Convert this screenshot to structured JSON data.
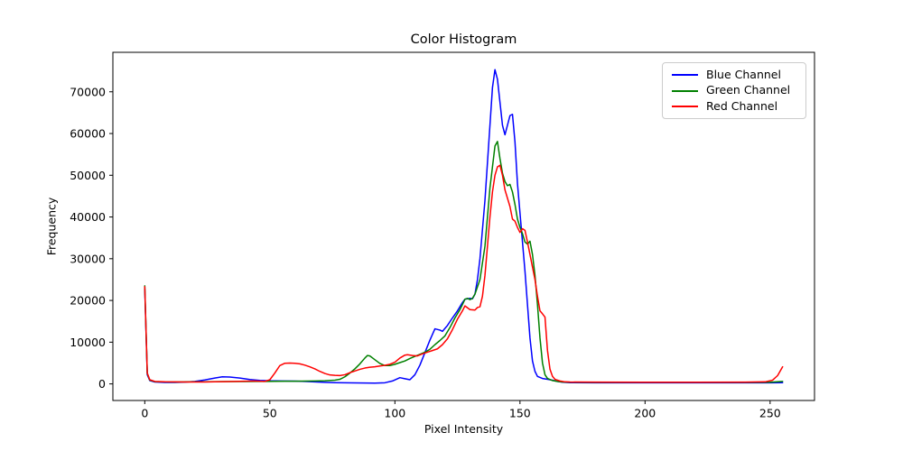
{
  "chart_data": {
    "type": "line",
    "title": "Color Histogram",
    "xlabel": "Pixel Intensity",
    "ylabel": "Frequency",
    "xlim": [
      -12.75,
      267.75
    ],
    "ylim": [
      -3973,
      79460
    ],
    "x_ticks": [
      0,
      50,
      100,
      150,
      200,
      250
    ],
    "y_ticks": [
      0,
      10000,
      20000,
      30000,
      40000,
      50000,
      60000,
      70000
    ],
    "grid": false,
    "legend": {
      "position": "upper right",
      "entries": [
        "Blue Channel",
        "Green Channel",
        "Red Channel"
      ]
    },
    "series": [
      {
        "name": "Blue Channel",
        "color": "#0000ff",
        "points": [
          [
            0,
            22800
          ],
          [
            1,
            2200
          ],
          [
            2,
            800
          ],
          [
            4,
            450
          ],
          [
            8,
            350
          ],
          [
            12,
            350
          ],
          [
            16,
            420
          ],
          [
            20,
            600
          ],
          [
            24,
            950
          ],
          [
            28,
            1400
          ],
          [
            31,
            1700
          ],
          [
            34,
            1650
          ],
          [
            38,
            1400
          ],
          [
            42,
            1050
          ],
          [
            46,
            850
          ],
          [
            50,
            750
          ],
          [
            55,
            700
          ],
          [
            60,
            680
          ],
          [
            64,
            600
          ],
          [
            68,
            480
          ],
          [
            72,
            380
          ],
          [
            76,
            300
          ],
          [
            80,
            260
          ],
          [
            84,
            230
          ],
          [
            88,
            210
          ],
          [
            92,
            200
          ],
          [
            96,
            280
          ],
          [
            99,
            700
          ],
          [
            102,
            1500
          ],
          [
            104,
            1250
          ],
          [
            106,
            1000
          ],
          [
            108,
            2200
          ],
          [
            110,
            4500
          ],
          [
            112,
            7500
          ],
          [
            114,
            10500
          ],
          [
            116,
            13200
          ],
          [
            118,
            12900
          ],
          [
            119,
            12600
          ],
          [
            121,
            14000
          ],
          [
            123,
            15800
          ],
          [
            125,
            17500
          ],
          [
            127,
            19500
          ],
          [
            128,
            20300
          ],
          [
            130,
            20500
          ],
          [
            131,
            20400
          ],
          [
            132,
            21500
          ],
          [
            133,
            25000
          ],
          [
            134,
            30000
          ],
          [
            136,
            44000
          ],
          [
            138,
            62000
          ],
          [
            139,
            71000
          ],
          [
            140,
            75300
          ],
          [
            141,
            73000
          ],
          [
            142,
            67500
          ],
          [
            143,
            62000
          ],
          [
            144,
            59700
          ],
          [
            145,
            62000
          ],
          [
            146,
            64300
          ],
          [
            147,
            64600
          ],
          [
            148,
            58000
          ],
          [
            149,
            48000
          ],
          [
            150,
            41000
          ],
          [
            151,
            34000
          ],
          [
            152,
            27000
          ],
          [
            153,
            19000
          ],
          [
            154,
            11000
          ],
          [
            155,
            5500
          ],
          [
            156,
            3000
          ],
          [
            157,
            1800
          ],
          [
            159,
            1300
          ],
          [
            161,
            1100
          ],
          [
            163,
            900
          ],
          [
            165,
            600
          ],
          [
            167,
            400
          ],
          [
            170,
            300
          ],
          [
            180,
            280
          ],
          [
            200,
            270
          ],
          [
            220,
            270
          ],
          [
            240,
            270
          ],
          [
            250,
            270
          ],
          [
            255,
            300
          ]
        ]
      },
      {
        "name": "Green Channel",
        "color": "#008000",
        "points": [
          [
            0,
            23500
          ],
          [
            1,
            2500
          ],
          [
            2,
            900
          ],
          [
            4,
            550
          ],
          [
            8,
            480
          ],
          [
            12,
            470
          ],
          [
            16,
            480
          ],
          [
            20,
            500
          ],
          [
            24,
            520
          ],
          [
            28,
            540
          ],
          [
            32,
            560
          ],
          [
            36,
            570
          ],
          [
            40,
            580
          ],
          [
            44,
            590
          ],
          [
            48,
            600
          ],
          [
            52,
            620
          ],
          [
            56,
            640
          ],
          [
            60,
            660
          ],
          [
            64,
            680
          ],
          [
            68,
            700
          ],
          [
            72,
            750
          ],
          [
            76,
            900
          ],
          [
            78,
            1100
          ],
          [
            80,
            1700
          ],
          [
            82,
            2600
          ],
          [
            84,
            3600
          ],
          [
            86,
            4800
          ],
          [
            88,
            6200
          ],
          [
            89,
            6800
          ],
          [
            90,
            6700
          ],
          [
            92,
            5800
          ],
          [
            94,
            4900
          ],
          [
            96,
            4400
          ],
          [
            98,
            4400
          ],
          [
            100,
            4700
          ],
          [
            102,
            5100
          ],
          [
            104,
            5500
          ],
          [
            106,
            6100
          ],
          [
            108,
            6600
          ],
          [
            110,
            7100
          ],
          [
            112,
            7600
          ],
          [
            114,
            8300
          ],
          [
            116,
            9400
          ],
          [
            118,
            10400
          ],
          [
            120,
            11500
          ],
          [
            122,
            13500
          ],
          [
            124,
            15800
          ],
          [
            126,
            17800
          ],
          [
            127,
            19000
          ],
          [
            128,
            20300
          ],
          [
            129,
            20500
          ],
          [
            130,
            20200
          ],
          [
            131,
            20500
          ],
          [
            132,
            21500
          ],
          [
            134,
            25000
          ],
          [
            136,
            33000
          ],
          [
            138,
            47000
          ],
          [
            140,
            57000
          ],
          [
            141,
            58100
          ],
          [
            142,
            54000
          ],
          [
            143,
            50500
          ],
          [
            144,
            48500
          ],
          [
            145,
            47500
          ],
          [
            146,
            47800
          ],
          [
            147,
            46000
          ],
          [
            148,
            43000
          ],
          [
            149,
            39500
          ],
          [
            150,
            37500
          ],
          [
            151,
            36000
          ],
          [
            152,
            34000
          ],
          [
            153,
            33500
          ],
          [
            154,
            34200
          ],
          [
            155,
            31000
          ],
          [
            156,
            26000
          ],
          [
            157,
            19000
          ],
          [
            158,
            11000
          ],
          [
            159,
            5000
          ],
          [
            160,
            2200
          ],
          [
            161,
            1300
          ],
          [
            163,
            800
          ],
          [
            165,
            600
          ],
          [
            167,
            450
          ],
          [
            170,
            400
          ],
          [
            180,
            380
          ],
          [
            200,
            370
          ],
          [
            220,
            370
          ],
          [
            240,
            370
          ],
          [
            250,
            400
          ],
          [
            255,
            600
          ]
        ]
      },
      {
        "name": "Red Channel",
        "color": "#ff0000",
        "points": [
          [
            0,
            23300
          ],
          [
            1,
            2600
          ],
          [
            2,
            1000
          ],
          [
            4,
            600
          ],
          [
            8,
            500
          ],
          [
            12,
            480
          ],
          [
            16,
            470
          ],
          [
            20,
            460
          ],
          [
            24,
            470
          ],
          [
            28,
            500
          ],
          [
            32,
            550
          ],
          [
            36,
            600
          ],
          [
            40,
            650
          ],
          [
            44,
            700
          ],
          [
            48,
            600
          ],
          [
            50,
            1000
          ],
          [
            52,
            2600
          ],
          [
            54,
            4400
          ],
          [
            56,
            4950
          ],
          [
            58,
            5000
          ],
          [
            60,
            4950
          ],
          [
            62,
            4800
          ],
          [
            64,
            4500
          ],
          [
            66,
            4100
          ],
          [
            68,
            3600
          ],
          [
            70,
            3000
          ],
          [
            72,
            2500
          ],
          [
            74,
            2150
          ],
          [
            76,
            2050
          ],
          [
            78,
            2000
          ],
          [
            80,
            2200
          ],
          [
            82,
            2700
          ],
          [
            84,
            3100
          ],
          [
            86,
            3500
          ],
          [
            88,
            3800
          ],
          [
            90,
            4000
          ],
          [
            92,
            4100
          ],
          [
            94,
            4300
          ],
          [
            96,
            4450
          ],
          [
            98,
            4700
          ],
          [
            100,
            5200
          ],
          [
            102,
            6200
          ],
          [
            104,
            6900
          ],
          [
            105,
            7000
          ],
          [
            107,
            6800
          ],
          [
            109,
            6700
          ],
          [
            111,
            7200
          ],
          [
            113,
            7600
          ],
          [
            115,
            8000
          ],
          [
            117,
            8400
          ],
          [
            119,
            9400
          ],
          [
            121,
            10800
          ],
          [
            123,
            13000
          ],
          [
            125,
            15500
          ],
          [
            126,
            16500
          ],
          [
            127,
            17500
          ],
          [
            128,
            18700
          ],
          [
            130,
            17800
          ],
          [
            132,
            17700
          ],
          [
            133,
            18300
          ],
          [
            134,
            18500
          ],
          [
            135,
            21000
          ],
          [
            136,
            26000
          ],
          [
            137,
            33000
          ],
          [
            138,
            40000
          ],
          [
            139,
            46000
          ],
          [
            140,
            50000
          ],
          [
            141,
            52000
          ],
          [
            142,
            52400
          ],
          [
            143,
            50000
          ],
          [
            144,
            46500
          ],
          [
            145,
            44500
          ],
          [
            146,
            42500
          ],
          [
            147,
            39500
          ],
          [
            148,
            39000
          ],
          [
            149,
            37500
          ],
          [
            150,
            36300
          ],
          [
            151,
            37200
          ],
          [
            152,
            36800
          ],
          [
            153,
            34000
          ],
          [
            154,
            31000
          ],
          [
            155,
            28000
          ],
          [
            156,
            25000
          ],
          [
            157,
            21000
          ],
          [
            158,
            17500
          ],
          [
            159,
            16800
          ],
          [
            160,
            16000
          ],
          [
            161,
            8000
          ],
          [
            162,
            3500
          ],
          [
            163,
            1800
          ],
          [
            164,
            1100
          ],
          [
            166,
            700
          ],
          [
            168,
            500
          ],
          [
            170,
            450
          ],
          [
            180,
            420
          ],
          [
            200,
            400
          ],
          [
            220,
            400
          ],
          [
            240,
            420
          ],
          [
            248,
            500
          ],
          [
            251,
            900
          ],
          [
            253,
            2000
          ],
          [
            255,
            4100
          ]
        ]
      }
    ]
  }
}
